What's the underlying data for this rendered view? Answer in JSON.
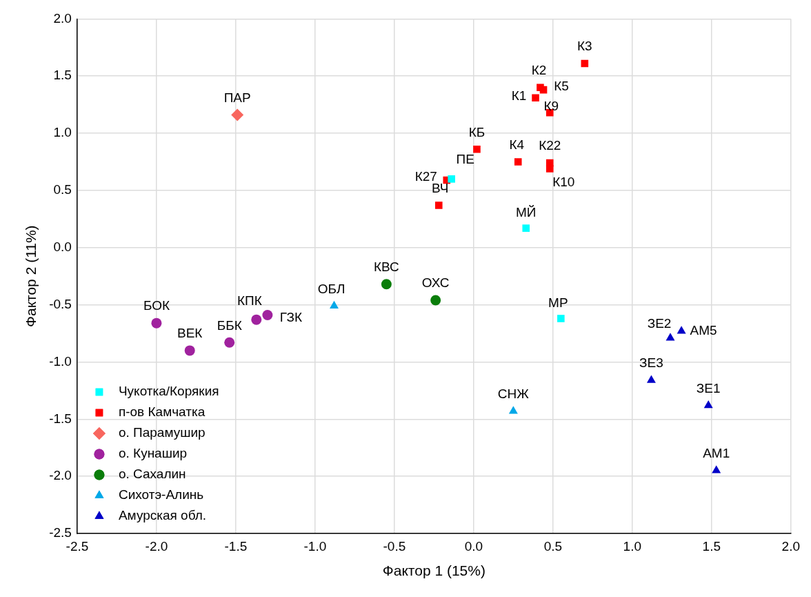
{
  "chart_data": {
    "type": "scatter",
    "xlabel": "Фактор 1 (15%)",
    "ylabel": "Фактор 2 (11%)",
    "xlim": [
      -2.5,
      2.0
    ],
    "xticks": [
      -2.5,
      {
        "value": -2,
        "label": "-2.0"
      },
      -1.5,
      {
        "value": -1,
        "label": "-1.0"
      },
      -0.5,
      {
        "value": 0,
        "label": "0.0"
      },
      0.5,
      {
        "value": 1,
        "label": "1.0"
      },
      1.5,
      {
        "value": 2,
        "label": "2.0"
      }
    ],
    "ylim": [
      -2.5,
      2.0
    ],
    "yticks": [
      -2.5,
      {
        "value": -2,
        "label": "-2.0"
      },
      -1.5,
      {
        "value": -1,
        "label": "-1.0"
      },
      -0.5,
      {
        "value": 0,
        "label": "0.0"
      },
      0.5,
      {
        "value": 1,
        "label": "1.0"
      },
      1.5,
      {
        "value": 2,
        "label": "2.0"
      }
    ],
    "grid": true,
    "legend": "bottom left",
    "series": [
      {
        "name": "Чукотка/Корякия",
        "color": "#00ffff",
        "marker": "square",
        "x": [
          -0.14,
          0.33,
          0.55
        ],
        "values": [
          0.6,
          0.17,
          -0.62
        ]
      },
      {
        "name": "п-ов Камчатка",
        "color": "#ff0000",
        "marker": "square",
        "x": [
          0.7,
          0.42,
          0.44,
          0.39,
          0.48,
          0.02,
          0.28,
          0.48,
          0.48,
          -0.17,
          -0.22
        ],
        "values": [
          1.61,
          1.4,
          1.38,
          1.31,
          1.18,
          0.86,
          0.75,
          0.74,
          0.69,
          0.59,
          0.37
        ]
      },
      {
        "name": "о. Парамушир",
        "color": "#f8665e",
        "marker": "diamond",
        "x": [
          -1.49
        ],
        "values": [
          1.16
        ]
      },
      {
        "name": "о. Кунашир",
        "color": "#a0229e",
        "marker": "circle",
        "x": [
          -2.0,
          -1.79,
          -1.54,
          -1.37,
          -1.3
        ],
        "values": [
          -0.66,
          -0.9,
          -0.83,
          -0.63,
          -0.59
        ]
      },
      {
        "name": "о. Сахалин",
        "color": "#0a7d0a",
        "marker": "circle",
        "x": [
          -0.55,
          -0.24
        ],
        "values": [
          -0.32,
          -0.46
        ]
      },
      {
        "name": "Сихотэ-Алинь",
        "color": "#00a8e8",
        "marker": "triangle",
        "x": [
          -0.88,
          0.25
        ],
        "values": [
          -0.51,
          -1.43
        ]
      },
      {
        "name": "Амурская обл.",
        "color": "#0000c8",
        "marker": "triangle",
        "x": [
          1.24,
          1.31,
          1.12,
          1.48,
          1.53
        ],
        "values": [
          -0.79,
          -0.73,
          -1.16,
          -1.38,
          -1.95
        ]
      }
    ],
    "annotations": [
      {
        "text": "ПЕ",
        "x": -0.14,
        "y": 0.6
      },
      {
        "text": "МЙ",
        "x": 0.33,
        "y": 0.17
      },
      {
        "text": "МР",
        "x": 0.55,
        "y": -0.62
      },
      {
        "text": "К3",
        "x": 0.7,
        "y": 1.61
      },
      {
        "text": "К2",
        "x": 0.42,
        "y": 1.4
      },
      {
        "text": "К5",
        "x": 0.44,
        "y": 1.38
      },
      {
        "text": "К1",
        "x": 0.39,
        "y": 1.31
      },
      {
        "text": "К9",
        "x": 0.48,
        "y": 1.18
      },
      {
        "text": "КБ",
        "x": 0.02,
        "y": 0.86
      },
      {
        "text": "К4",
        "x": 0.28,
        "y": 0.75
      },
      {
        "text": "К22",
        "x": 0.48,
        "y": 0.74
      },
      {
        "text": "К10",
        "x": 0.48,
        "y": 0.69
      },
      {
        "text": "К27",
        "x": -0.17,
        "y": 0.59
      },
      {
        "text": "ВЧ",
        "x": -0.22,
        "y": 0.37
      },
      {
        "text": "ПАР",
        "x": -1.49,
        "y": 1.16
      },
      {
        "text": "БОК",
        "x": -2.0,
        "y": -0.66
      },
      {
        "text": "ВЕК",
        "x": -1.79,
        "y": -0.9
      },
      {
        "text": "ББК",
        "x": -1.54,
        "y": -0.83
      },
      {
        "text": "КПК",
        "x": -1.37,
        "y": -0.63
      },
      {
        "text": "ГЗК",
        "x": -1.3,
        "y": -0.59
      },
      {
        "text": "КВС",
        "x": -0.55,
        "y": -0.32
      },
      {
        "text": "ОХС",
        "x": -0.24,
        "y": -0.46
      },
      {
        "text": "ОБЛ",
        "x": -0.88,
        "y": -0.51
      },
      {
        "text": "СНЖ",
        "x": 0.25,
        "y": -1.43
      },
      {
        "text": "ЗЕ2",
        "x": 1.24,
        "y": -0.79
      },
      {
        "text": "АМ5",
        "x": 1.31,
        "y": -0.73
      },
      {
        "text": "ЗЕ3",
        "x": 1.12,
        "y": -1.16
      },
      {
        "text": "ЗЕ1",
        "x": 1.48,
        "y": -1.38
      },
      {
        "text": "АМ1",
        "x": 1.53,
        "y": -1.95
      }
    ]
  }
}
